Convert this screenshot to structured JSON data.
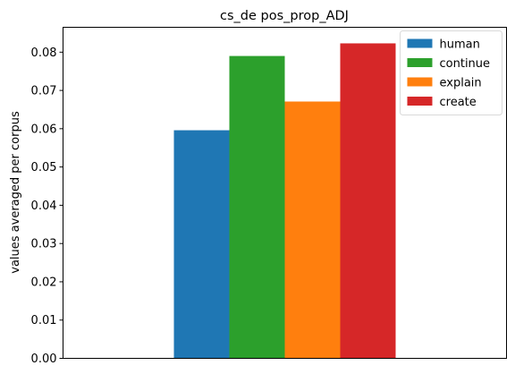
{
  "chart_data": {
    "type": "bar",
    "title": "cs_de pos_prop_ADJ",
    "xlabel": "",
    "ylabel": "values averaged per corpus",
    "ylim": [
      0,
      0.0865
    ],
    "yticks": [
      0.0,
      0.01,
      0.02,
      0.03,
      0.04,
      0.05,
      0.06,
      0.07,
      0.08
    ],
    "ytick_labels": [
      "0.00",
      "0.01",
      "0.02",
      "0.03",
      "0.04",
      "0.05",
      "0.06",
      "0.07",
      "0.08"
    ],
    "grid": false,
    "legend_position": "top-right",
    "series": [
      {
        "name": "human",
        "value": 0.0596,
        "color": "#1f77b4"
      },
      {
        "name": "continue",
        "value": 0.079,
        "color": "#2ca02c"
      },
      {
        "name": "explain",
        "value": 0.0671,
        "color": "#ff7f0e"
      },
      {
        "name": "create",
        "value": 0.0823,
        "color": "#d62728"
      }
    ]
  }
}
